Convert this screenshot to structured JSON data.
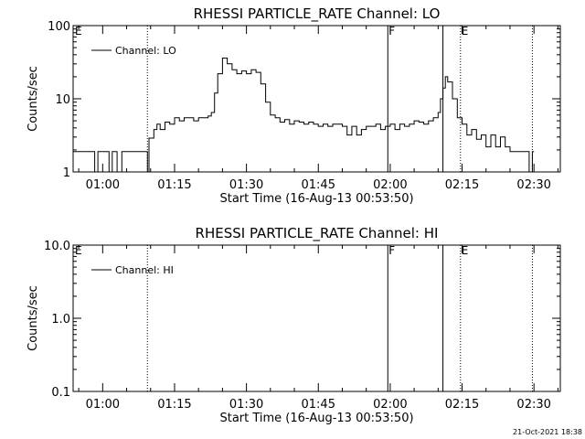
{
  "footer": {
    "timestamp": "21-Oct-2021 18:38"
  },
  "chart_data": [
    {
      "type": "line",
      "title": "RHESSI PARTICLE_RATE Channel: LO",
      "xlabel": "Start Time (16-Aug-13 00:53:50)",
      "ylabel": "Counts/sec",
      "yscale": "log",
      "ylim": [
        1,
        100
      ],
      "yticks": [
        1,
        10,
        100
      ],
      "ytick_labels": [
        "1",
        "10",
        "100"
      ],
      "xlim": [
        "00:53:50",
        "02:35:30"
      ],
      "xticks": [
        "01:00",
        "01:15",
        "01:30",
        "01:45",
        "02:00",
        "02:15",
        "02:30"
      ],
      "grid": false,
      "legend": {
        "position": "top-left",
        "entries": [
          "Channel: LO"
        ]
      },
      "markers": [
        {
          "time": "01:09:20",
          "style": "dotted",
          "label": ""
        },
        {
          "time": "01:59:30",
          "style": "solid",
          "label": "F"
        },
        {
          "time": "02:11:00",
          "style": "solid",
          "label": ""
        },
        {
          "time": "02:14:40",
          "style": "dotted",
          "label": "E"
        },
        {
          "time": "02:29:40",
          "style": "dotted",
          "label": ""
        }
      ],
      "corner_label": "E",
      "series": [
        {
          "name": "Channel: LO",
          "x": [
            "00:53:50",
            "00:58:00",
            "00:58:20",
            "00:59:00",
            "00:59:30",
            "01:00:00",
            "01:01:00",
            "01:01:20",
            "01:02:00",
            "01:02:40",
            "01:03:00",
            "01:04:00",
            "01:05:00",
            "01:06:00",
            "01:07:00",
            "01:08:00",
            "01:09:00",
            "01:09:20",
            "01:09:40",
            "01:10:00",
            "01:10:40",
            "01:11:20",
            "01:12:00",
            "01:13:00",
            "01:14:00",
            "01:15:00",
            "01:16:00",
            "01:17:00",
            "01:18:00",
            "01:19:00",
            "01:20:00",
            "01:21:00",
            "01:22:00",
            "01:22:40",
            "01:23:20",
            "01:24:00",
            "01:25:00",
            "01:26:00",
            "01:27:00",
            "01:28:00",
            "01:29:00",
            "01:30:00",
            "01:31:00",
            "01:32:00",
            "01:33:00",
            "01:34:00",
            "01:35:00",
            "01:36:00",
            "01:37:00",
            "01:38:00",
            "01:39:00",
            "01:40:00",
            "01:41:00",
            "01:42:00",
            "01:43:00",
            "01:44:00",
            "01:45:00",
            "01:46:00",
            "01:47:00",
            "01:48:00",
            "01:49:00",
            "01:50:00",
            "01:51:00",
            "01:52:00",
            "01:53:00",
            "01:54:00",
            "01:55:00",
            "01:56:00",
            "01:57:00",
            "01:58:00",
            "01:59:00",
            "02:00:00",
            "02:01:00",
            "02:02:00",
            "02:03:00",
            "02:04:00",
            "02:05:00",
            "02:06:00",
            "02:07:00",
            "02:08:00",
            "02:09:00",
            "02:10:00",
            "02:10:30",
            "02:11:00",
            "02:11:30",
            "02:12:00",
            "02:13:00",
            "02:14:00",
            "02:15:00",
            "02:16:00",
            "02:17:00",
            "02:18:00",
            "02:19:00",
            "02:20:00",
            "02:21:00",
            "02:22:00",
            "02:23:00",
            "02:24:00",
            "02:25:00",
            "02:26:00",
            "02:27:00",
            "02:28:00",
            "02:29:00",
            "02:29:40",
            "02:30:00"
          ],
          "y": [
            1.9,
            1.9,
            1,
            1.9,
            1.9,
            1.9,
            1.9,
            1,
            1.9,
            1.9,
            1,
            1.9,
            1.9,
            1.9,
            1.9,
            1.9,
            1.9,
            1,
            2.9,
            2.9,
            3.8,
            4.5,
            3.8,
            4.8,
            4.5,
            5.5,
            5.0,
            5.5,
            5.5,
            5.0,
            5.5,
            5.5,
            5.8,
            6.5,
            12,
            22,
            36,
            30,
            25,
            22,
            24,
            22,
            25,
            23,
            16,
            9,
            6,
            5.5,
            4.8,
            5.2,
            4.5,
            5.0,
            4.8,
            4.5,
            4.8,
            4.5,
            4.2,
            4.5,
            4.2,
            4.5,
            4.5,
            4.2,
            3.2,
            4.2,
            3.2,
            3.8,
            4.2,
            4.2,
            4.5,
            3.8,
            4.2,
            4.5,
            3.8,
            4.5,
            4.2,
            4.5,
            5.0,
            4.8,
            4.5,
            5.0,
            5.5,
            6.5,
            10,
            14,
            20,
            17,
            10,
            5.5,
            4.5,
            3.2,
            3.8,
            2.8,
            3.2,
            2.2,
            3.2,
            2.2,
            3.0,
            2.2,
            1.9,
            1.9,
            1.9,
            1.9,
            1,
            1.9,
            1.9
          ]
        }
      ]
    },
    {
      "type": "line",
      "title": "RHESSI PARTICLE_RATE Channel: HI",
      "xlabel": "Start Time (16-Aug-13 00:53:50)",
      "ylabel": "Counts/sec",
      "yscale": "log",
      "ylim": [
        0.1,
        10
      ],
      "yticks": [
        0.1,
        1,
        10
      ],
      "ytick_labels": [
        "0.1",
        "1.0",
        "10.0"
      ],
      "xlim": [
        "00:53:50",
        "02:35:30"
      ],
      "xticks": [
        "01:00",
        "01:15",
        "01:30",
        "01:45",
        "02:00",
        "02:15",
        "02:30"
      ],
      "grid": false,
      "legend": {
        "position": "top-left",
        "entries": [
          "Channel: HI"
        ]
      },
      "markers": [
        {
          "time": "01:09:20",
          "style": "dotted",
          "label": ""
        },
        {
          "time": "01:59:30",
          "style": "solid",
          "label": "F"
        },
        {
          "time": "02:11:00",
          "style": "solid",
          "label": ""
        },
        {
          "time": "02:14:40",
          "style": "dotted",
          "label": "E"
        },
        {
          "time": "02:29:40",
          "style": "dotted",
          "label": ""
        }
      ],
      "corner_label": "E",
      "series": [
        {
          "name": "Channel: HI",
          "x": [],
          "y": []
        }
      ]
    }
  ]
}
